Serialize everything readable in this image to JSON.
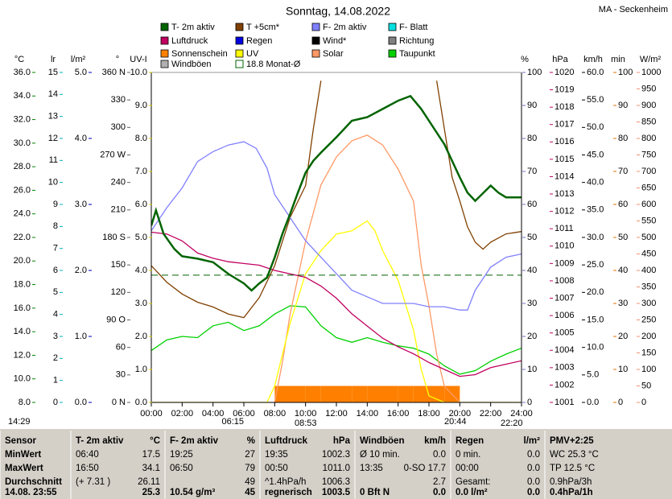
{
  "chart_data": {
    "type": "line",
    "title": "Sonntag, 14.08.2022",
    "station": "MA - Seckenheim",
    "xlim": [
      0,
      24
    ],
    "xticks": [
      {
        "value": 0,
        "label": "00:00"
      },
      {
        "value": 2,
        "label": "02:00"
      },
      {
        "value": 4,
        "label": "04:00"
      },
      {
        "value": 6,
        "label": "06:00"
      },
      {
        "value": 8,
        "label": "08:00"
      },
      {
        "value": 10,
        "label": "10:00"
      },
      {
        "value": 12,
        "label": "12:00"
      },
      {
        "value": 14,
        "label": "14:00"
      },
      {
        "value": 16,
        "label": "16:00"
      },
      {
        "value": 18,
        "label": "18:00"
      },
      {
        "value": 20,
        "label": "20:00"
      },
      {
        "value": 22,
        "label": "22:00"
      },
      {
        "value": 24,
        "label": "24:00"
      }
    ],
    "axes": [
      {
        "unit": "°C",
        "color": "#008000",
        "lim": [
          8,
          36
        ],
        "ticks": [
          {
            "value": 8,
            "label": "8.0"
          },
          {
            "value": 10,
            "label": "10.0"
          },
          {
            "value": 12,
            "label": "12.0"
          },
          {
            "value": 14,
            "label": "14.0"
          },
          {
            "value": 16,
            "label": "16.0"
          },
          {
            "value": 18,
            "label": "18.0"
          },
          {
            "value": 20,
            "label": "20.0"
          },
          {
            "value": 22,
            "label": "22.0"
          },
          {
            "value": 24,
            "label": "24.0"
          },
          {
            "value": 26,
            "label": "26.0"
          },
          {
            "value": 28,
            "label": "28.0"
          },
          {
            "value": 30,
            "label": "30.0"
          },
          {
            "value": 32,
            "label": "32.0"
          },
          {
            "value": 34,
            "label": "34.0"
          },
          {
            "value": 36,
            "label": "36.0"
          }
        ]
      },
      {
        "unit": "lr",
        "color": "#00b0c0",
        "lim": [
          0,
          15
        ],
        "ticks": [
          0,
          1,
          2,
          3,
          4,
          5,
          6,
          7,
          8,
          9,
          10,
          11,
          12,
          13,
          14,
          15
        ]
      },
      {
        "unit": "l/m²",
        "color": "#0000c0",
        "lim": [
          0,
          5
        ],
        "ticks": [
          {
            "value": 0,
            "label": "0.0"
          },
          {
            "value": 1,
            "label": "1.0"
          },
          {
            "value": 2,
            "label": "2.0"
          },
          {
            "value": 3,
            "label": "3.0"
          },
          {
            "value": 4,
            "label": "4.0"
          },
          {
            "value": 5,
            "label": "5.0"
          }
        ]
      },
      {
        "unit": "°",
        "color": "#606060",
        "lim": [
          0,
          360
        ],
        "ticks": [
          {
            "value": 0,
            "label": "0 N"
          },
          30,
          60,
          {
            "value": 90,
            "label": "90 O"
          },
          120,
          150,
          {
            "value": 180,
            "label": "180 S"
          },
          210,
          240,
          {
            "value": 270,
            "label": "270 W"
          },
          300,
          330,
          {
            "value": 360,
            "label": "360 N"
          }
        ]
      },
      {
        "unit": "UV-I",
        "color": "#d8c800",
        "lim": [
          0,
          10
        ],
        "ticks": [
          {
            "value": 0,
            "label": "0.0"
          },
          {
            "value": 1,
            "label": "1.0"
          },
          {
            "value": 2,
            "label": "2.0"
          },
          {
            "value": 3,
            "label": "3.0"
          },
          {
            "value": 4,
            "label": "4.0"
          },
          {
            "value": 5,
            "label": "5.0"
          },
          {
            "value": 6,
            "label": "6.0"
          },
          {
            "value": 7,
            "label": "7.0"
          },
          {
            "value": 8,
            "label": "8.0"
          },
          {
            "value": 9,
            "label": "9.0"
          },
          {
            "value": 10,
            "label": "10.0"
          }
        ]
      },
      {
        "unit": "%",
        "color": "#7070c0",
        "lim": [
          0,
          100
        ],
        "ticks": [
          0,
          10,
          20,
          30,
          40,
          50,
          60,
          70,
          80,
          90,
          100
        ]
      },
      {
        "unit": "hPa",
        "color": "#c00060",
        "lim": [
          1001,
          1020
        ],
        "ticks": [
          1001,
          1002,
          1003,
          1004,
          1005,
          1006,
          1007,
          1008,
          1009,
          1010,
          1011,
          1012,
          1013,
          1014,
          1015,
          1016,
          1017,
          1018,
          1019,
          1020
        ]
      },
      {
        "unit": "km/h",
        "color": "#000000",
        "lim": [
          0,
          60
        ],
        "ticks": [
          {
            "value": 0,
            "label": "0.0"
          },
          {
            "value": 5,
            "label": "5.0"
          },
          {
            "value": 10,
            "label": "10.0"
          },
          {
            "value": 15,
            "label": "15.0"
          },
          {
            "value": 20,
            "label": "20.0"
          },
          {
            "value": 25,
            "label": "25.0"
          },
          {
            "value": 30,
            "label": "30.0"
          },
          {
            "value": 35,
            "label": "35.0"
          },
          {
            "value": 40,
            "label": "40.0"
          },
          {
            "value": 45,
            "label": "45.0"
          },
          {
            "value": 50,
            "label": "50.0"
          },
          {
            "value": 55,
            "label": "55.0"
          },
          {
            "value": 60,
            "label": "60.0"
          }
        ]
      },
      {
        "unit": "min",
        "color": "#e07000",
        "lim": [
          0,
          100
        ],
        "ticks": [
          0,
          10,
          20,
          30,
          40,
          50,
          60,
          70,
          80,
          90,
          100
        ]
      },
      {
        "unit": "W/m²",
        "color": "#f09070",
        "lim": [
          0,
          1000
        ],
        "ticks": [
          0,
          50,
          100,
          150,
          200,
          250,
          300,
          350,
          400,
          450,
          500,
          550,
          600,
          650,
          700,
          750,
          800,
          850,
          900,
          950,
          1000
        ]
      }
    ],
    "series": [
      {
        "name": "T- 2m aktiv",
        "color": "#006400",
        "unit": "°C",
        "kind": "line",
        "x": [
          0,
          0.3,
          0.8,
          1.5,
          2,
          3,
          4,
          5,
          6,
          6.5,
          7,
          7.5,
          8,
          8.5,
          9,
          9.5,
          10,
          10.5,
          11,
          12,
          13,
          14,
          15,
          16,
          16.8,
          17.5,
          18,
          19,
          20,
          20.5,
          21,
          22,
          22.5,
          23,
          24
        ],
        "values": [
          23.0,
          24.3,
          22.3,
          21.0,
          20.4,
          20.2,
          19.9,
          18.9,
          18.1,
          17.5,
          18.1,
          18.6,
          20.3,
          22.3,
          24.0,
          25.8,
          27.5,
          28.5,
          29.2,
          30.5,
          31.9,
          32.2,
          32.9,
          33.6,
          34.0,
          32.9,
          31.9,
          29.9,
          27.1,
          25.8,
          25.1,
          26.4,
          25.8,
          25.4,
          25.4
        ]
      },
      {
        "name": "Luftdruck",
        "color": "#c00060",
        "unit": "hPa",
        "kind": "line",
        "x": [
          0,
          1,
          2,
          3,
          4,
          5,
          6,
          7,
          8,
          9,
          10,
          11,
          12,
          13,
          14,
          15,
          16,
          17,
          18,
          19,
          20,
          21,
          22,
          23,
          24
        ],
        "values": [
          1010.8,
          1010.7,
          1010.3,
          1009.6,
          1009.3,
          1009.1,
          1009.0,
          1008.9,
          1008.6,
          1008.4,
          1008.2,
          1007.7,
          1007.0,
          1006.1,
          1005.4,
          1004.7,
          1004.2,
          1003.8,
          1003.3,
          1002.9,
          1002.5,
          1002.6,
          1003.0,
          1003.2,
          1003.4
        ]
      },
      {
        "name": "Sonnenschein",
        "color": "#ff8000",
        "unit": "min",
        "kind": "bar",
        "x": [
          8.5,
          9.5,
          10.5,
          11.5,
          12.5,
          13.5,
          14.5,
          15.5,
          16.5,
          17.5,
          18.5,
          19.5
        ],
        "values": [
          5,
          5,
          5,
          5,
          5,
          5,
          5,
          5,
          5,
          5,
          5,
          5
        ]
      },
      {
        "name": "Windböen",
        "color": "#b0b0b0"
      },
      {
        "name": "T +5cm*",
        "color": "#804000",
        "unit": "°C",
        "kind": "line",
        "x": [
          0,
          1,
          2,
          3,
          4,
          5,
          6,
          7,
          8,
          9,
          10,
          10.5,
          11,
          11.5,
          18.2,
          18.5,
          19,
          19.5,
          20,
          20.5,
          21,
          21.5,
          22,
          23,
          24
        ],
        "values": [
          19.6,
          18.2,
          17.2,
          16.5,
          16.1,
          15.5,
          15.2,
          16.9,
          19.6,
          23.7,
          26.4,
          31.2,
          35.3,
          null,
          null,
          35.3,
          31.2,
          27.1,
          25.1,
          22.9,
          21.6,
          21.0,
          21.6,
          22.3,
          22.5
        ]
      },
      {
        "name": "Regen",
        "color": "#0000e0"
      },
      {
        "name": "UV",
        "color": "#ffff00",
        "unit": "UV-I",
        "kind": "line",
        "x": [
          0,
          7.5,
          8,
          9,
          10,
          11,
          12,
          13,
          14,
          14.5,
          15,
          16,
          17,
          17.5,
          18,
          19,
          24
        ],
        "values": [
          0,
          0,
          0.5,
          2.4,
          3.9,
          4.6,
          5.1,
          5.2,
          5.5,
          5.2,
          4.6,
          3.7,
          2.2,
          1.0,
          0.2,
          0,
          0
        ]
      },
      {
        "name": "18.8 Monat-Ø",
        "color": "#006400",
        "unit": "°C",
        "kind": "hline",
        "value": 18.8
      },
      {
        "name": "F- 2m aktiv",
        "color": "#8080ff",
        "unit": "%",
        "kind": "line",
        "x": [
          0,
          1,
          2,
          3,
          4,
          5,
          6,
          6.8,
          7.5,
          8,
          9,
          10,
          11,
          12,
          13,
          14,
          15,
          16,
          17,
          18,
          19,
          20,
          20.5,
          21,
          22,
          23,
          24
        ],
        "values": [
          52,
          59,
          65,
          73,
          76,
          78,
          79,
          77,
          71,
          63,
          56,
          49,
          44,
          39,
          34,
          32,
          30,
          30,
          30,
          29,
          29,
          28,
          28,
          34,
          41,
          44,
          45
        ]
      },
      {
        "name": "Wind*",
        "color": "#000000"
      },
      {
        "name": "Solar",
        "color": "#ff9966",
        "unit": "W/m²",
        "kind": "line",
        "x": [
          0,
          8,
          8.5,
          9,
          10,
          11,
          12,
          13,
          14,
          15,
          16,
          17,
          17.5,
          18,
          18.5,
          19,
          20,
          24
        ],
        "values": [
          0,
          0,
          122,
          268,
          488,
          659,
          744,
          793,
          810,
          780,
          707,
          610,
          415,
          293,
          146,
          49,
          0,
          0
        ]
      },
      {
        "name": "F- Blatt",
        "color": "#00e0e0"
      },
      {
        "name": "Richtung",
        "color": "#808080"
      },
      {
        "name": "Taupunkt",
        "color": "#00d000",
        "unit": "°C",
        "kind": "line",
        "x": [
          0,
          1,
          2,
          3,
          4,
          5,
          6,
          7,
          8,
          9,
          10,
          11,
          12,
          13,
          14,
          15,
          16,
          17,
          18,
          19,
          20,
          21,
          22,
          23,
          24
        ],
        "values": [
          12.4,
          13.3,
          13.6,
          13.5,
          14.5,
          14.8,
          14.1,
          14.5,
          15.5,
          16.2,
          16.1,
          14.5,
          13.5,
          13.1,
          13.5,
          13.1,
          12.8,
          12.6,
          12.1,
          11.1,
          10.4,
          10.7,
          11.5,
          12.1,
          12.6
        ]
      }
    ],
    "time_marks": [
      "14:29",
      "06:15",
      "08:53",
      "20:44",
      "22:20"
    ]
  },
  "table": {
    "columns": [
      {
        "rows": [
          [
            "Sensor"
          ],
          [
            "MinWert"
          ],
          [
            "MaxWert"
          ],
          [
            "Durchschnitt"
          ],
          [
            "14.08. 23:55"
          ]
        ]
      },
      {
        "rows": [
          [
            "T- 2m aktiv",
            "°C"
          ],
          [
            "06:40",
            "17.5"
          ],
          [
            "16:50",
            "34.1"
          ],
          [
            "(+ 7.31 )",
            "26.11"
          ],
          [
            null,
            "25.3"
          ]
        ]
      },
      {
        "rows": [
          [
            "F- 2m aktiv",
            "%"
          ],
          [
            "19:25",
            "27"
          ],
          [
            "06:50",
            "79"
          ],
          [
            null,
            "49"
          ],
          [
            "10.54 g/m³",
            "45"
          ]
        ]
      },
      {
        "rows": [
          [
            "Luftdruck",
            "hPa"
          ],
          [
            "19:35",
            "1002.3"
          ],
          [
            "00:50",
            "1011.0"
          ],
          [
            "^1.4hPa/h",
            "1006.3"
          ],
          [
            "regnerisch",
            "1003.5"
          ]
        ]
      },
      {
        "rows": [
          [
            "Windböen",
            "km/h"
          ],
          [
            "Ø 10 min.",
            "0.0"
          ],
          [
            "13:35",
            "0-SO 17.7"
          ],
          [
            null,
            "2.7"
          ],
          [
            "0 Bft N",
            "0.0"
          ]
        ]
      },
      {
        "rows": [
          [
            "Regen",
            "l/m²"
          ],
          [
            "0 min.",
            "0.0"
          ],
          [
            "00:00",
            "0.0"
          ],
          [
            "Gesamt:",
            "0.0"
          ],
          [
            "0.0 l/m²",
            "0.0"
          ]
        ]
      },
      {
        "rows": [
          [
            "PMV+2:25"
          ],
          [
            "WC 25.3 °C"
          ],
          [
            "TP 12.5 °C"
          ],
          [
            "0.9hPa/3h"
          ],
          [
            "0.4hPa/1h"
          ]
        ]
      }
    ]
  }
}
